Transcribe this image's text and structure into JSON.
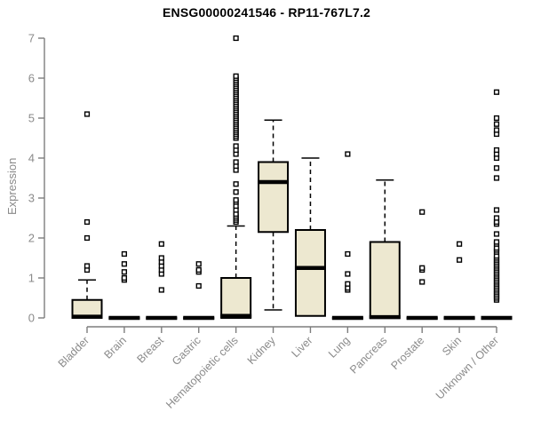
{
  "title": "ENSG00000241546 - RP11-767L7.2",
  "colors": {
    "box_fill": "#EDE8D0",
    "box_stroke": "#000000",
    "median": "#000000",
    "axis": "#7d7d7d",
    "tick_label": "#8a8a8a",
    "title": "#000000",
    "background": "#ffffff"
  },
  "chart_data": {
    "type": "boxplot",
    "title": "ENSG00000241546 - RP11-767L7.2",
    "xlabel": "",
    "ylabel": "Expression",
    "ylim": [
      0,
      7
    ],
    "yticks": [
      0,
      1,
      2,
      3,
      4,
      5,
      6,
      7
    ],
    "grid": false,
    "legend": "none",
    "categories": [
      "Bladder",
      "Brain",
      "Breast",
      "Gastric",
      "Hematopoietic cells",
      "Kidney",
      "Liver",
      "Lung",
      "Pancreas",
      "Prostate",
      "Skin",
      "Unknown / Other"
    ],
    "boxes": [
      {
        "category": "Bladder",
        "whisker_low": 0,
        "q1": 0,
        "median": 0.03,
        "q3": 0.45,
        "whisker_high": 0.95,
        "outliers": [
          1.2,
          1.3,
          2.0,
          2.4,
          5.1
        ]
      },
      {
        "category": "Brain",
        "whisker_low": 0,
        "q1": 0,
        "median": 0,
        "q3": 0,
        "whisker_high": 0,
        "outliers": [
          0.95,
          1.0,
          1.15,
          1.35,
          1.6
        ]
      },
      {
        "category": "Breast",
        "whisker_low": 0,
        "q1": 0,
        "median": 0,
        "q3": 0,
        "whisker_high": 0,
        "outliers": [
          0.7,
          1.1,
          1.2,
          1.3,
          1.4,
          1.5,
          1.85
        ]
      },
      {
        "category": "Gastric",
        "whisker_low": 0,
        "q1": 0,
        "median": 0,
        "q3": 0,
        "whisker_high": 0,
        "outliers": [
          0.8,
          1.15,
          1.2,
          1.35
        ]
      },
      {
        "category": "Hematopoietic cells",
        "whisker_low": 0,
        "q1": 0,
        "median": 0.05,
        "q3": 1.0,
        "whisker_high": 2.3,
        "outliers": [
          2.4,
          2.45,
          2.5,
          2.55,
          2.6,
          2.7,
          2.8,
          2.9,
          2.95,
          3.15,
          3.35,
          3.7,
          3.8,
          3.9,
          4.1,
          4.2,
          4.3,
          4.5,
          4.55,
          4.6,
          4.65,
          4.7,
          4.75,
          4.8,
          4.85,
          4.9,
          4.95,
          5.0,
          5.05,
          5.1,
          5.15,
          5.2,
          5.25,
          5.3,
          5.35,
          5.4,
          5.45,
          5.5,
          5.55,
          5.6,
          5.65,
          5.7,
          5.75,
          5.8,
          5.85,
          5.9,
          5.95,
          6.0,
          6.05,
          7.0
        ]
      },
      {
        "category": "Kidney",
        "whisker_low": 0.2,
        "q1": 2.15,
        "median": 3.4,
        "q3": 3.9,
        "whisker_high": 4.95,
        "outliers": []
      },
      {
        "category": "Liver",
        "whisker_low": 0.05,
        "q1": 0.05,
        "median": 1.25,
        "q3": 2.2,
        "whisker_high": 4.0,
        "outliers": []
      },
      {
        "category": "Lung",
        "whisker_low": 0,
        "q1": 0,
        "median": 0,
        "q3": 0,
        "whisker_high": 0,
        "outliers": [
          0.7,
          0.75,
          0.85,
          1.1,
          1.6,
          4.1
        ]
      },
      {
        "category": "Pancreas",
        "whisker_low": 0,
        "q1": 0,
        "median": 0.02,
        "q3": 1.9,
        "whisker_high": 3.45,
        "outliers": []
      },
      {
        "category": "Prostate",
        "whisker_low": 0,
        "q1": 0,
        "median": 0,
        "q3": 0,
        "whisker_high": 0,
        "outliers": [
          0.9,
          1.2,
          1.25,
          2.65
        ]
      },
      {
        "category": "Skin",
        "whisker_low": 0,
        "q1": 0,
        "median": 0,
        "q3": 0,
        "whisker_high": 0,
        "outliers": [
          1.45,
          1.85
        ]
      },
      {
        "category": "Unknown / Other",
        "whisker_low": 0,
        "q1": 0,
        "median": 0,
        "q3": 0,
        "whisker_high": 0,
        "outliers": [
          0.45,
          0.5,
          0.55,
          0.6,
          0.65,
          0.7,
          0.75,
          0.8,
          0.85,
          0.9,
          0.95,
          1.0,
          1.05,
          1.1,
          1.15,
          1.2,
          1.25,
          1.3,
          1.35,
          1.4,
          1.45,
          1.5,
          1.55,
          1.65,
          1.7,
          1.75,
          1.85,
          1.9,
          2.1,
          2.35,
          2.4,
          2.5,
          2.7,
          3.5,
          3.75,
          4.0,
          4.1,
          4.2,
          4.6,
          4.7,
          4.85,
          5.0,
          5.65
        ]
      }
    ]
  }
}
